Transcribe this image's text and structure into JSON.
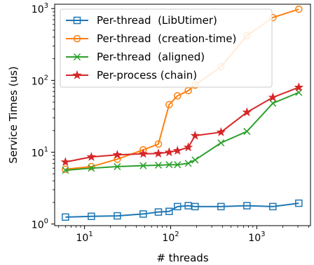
{
  "chart_data": {
    "type": "line",
    "xlabel": "# threads",
    "ylabel": "Service Times (us)",
    "xscale": "log",
    "yscale": "log",
    "xlim": [
      4.5,
      4200
    ],
    "ylim": [
      0.95,
      1150
    ],
    "x_ticks": [
      {
        "value": 10,
        "base": "10",
        "exp": "1"
      },
      {
        "value": 100,
        "base": "10",
        "exp": "2"
      },
      {
        "value": 1000,
        "base": "10",
        "exp": "3"
      }
    ],
    "y_ticks": [
      {
        "value": 1,
        "base": "10",
        "exp": "0"
      },
      {
        "value": 10,
        "base": "10",
        "exp": "1"
      },
      {
        "value": 100,
        "base": "10",
        "exp": "2"
      },
      {
        "value": 1000,
        "base": "10",
        "exp": "3"
      }
    ],
    "grid": false,
    "legend_position": "top-left",
    "series": [
      {
        "name": "Per-thread  (LibUtimer)",
        "color": "#1f77b4",
        "marker": "square",
        "x": [
          6,
          12,
          24,
          48,
          72,
          96,
          120,
          160,
          192,
          384,
          768,
          1536,
          3072
        ],
        "y": [
          1.25,
          1.28,
          1.3,
          1.38,
          1.47,
          1.5,
          1.75,
          1.8,
          1.75,
          1.75,
          1.8,
          1.75,
          1.95
        ]
      },
      {
        "name": "Per-thread  (creation-time)",
        "color": "#ff7f0e",
        "marker": "circle",
        "x": [
          6,
          12,
          24,
          48,
          72,
          96,
          120,
          160,
          192,
          384,
          768,
          1536,
          3072
        ],
        "y": [
          5.8,
          6.3,
          8.0,
          10.8,
          13.0,
          46.0,
          61.0,
          72.0,
          86.0,
          155.0,
          420.0,
          750.0,
          980.0
        ]
      },
      {
        "name": "Per-thread  (aligned)",
        "color": "#2ca02c",
        "marker": "x",
        "x": [
          6,
          12,
          24,
          48,
          72,
          96,
          120,
          160,
          192,
          384,
          768,
          1536,
          3072
        ],
        "y": [
          5.6,
          6.0,
          6.3,
          6.5,
          6.6,
          6.7,
          6.7,
          7.0,
          7.8,
          13.5,
          19.5,
          48.0,
          68.0
        ]
      },
      {
        "name": "Per-process (chain)",
        "color": "#d62728",
        "marker": "star",
        "x": [
          6,
          12,
          24,
          48,
          72,
          96,
          120,
          160,
          192,
          384,
          768,
          1536,
          3072
        ],
        "y": [
          7.3,
          8.6,
          9.2,
          9.5,
          9.6,
          10.0,
          10.5,
          11.7,
          17.0,
          19.0,
          36.0,
          58.0,
          80.0
        ]
      }
    ]
  }
}
